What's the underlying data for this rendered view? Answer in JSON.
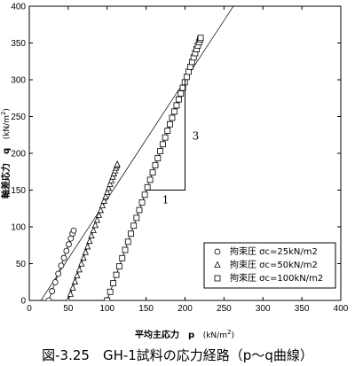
{
  "caption": "図-3.25　GH-1試料の応力経路（p～q曲線）",
  "chart_data": {
    "type": "scatter",
    "title": "",
    "xlabel": "平均主応力　p",
    "xlabel_unit": "(kN/m",
    "xlabel_unit_sup": "2",
    "xlabel_unit_close": ")",
    "ylabel": "軸差応力　q",
    "ylabel_unit": "(kN/m",
    "ylabel_unit_sup": "2",
    "ylabel_unit_close": ")",
    "xlim": [
      0,
      400
    ],
    "ylim": [
      0,
      400
    ],
    "x_ticks": [
      "0",
      "50",
      "100",
      "150",
      "200",
      "250",
      "300",
      "350",
      "400"
    ],
    "y_ticks": [
      "0",
      "50",
      "100",
      "150",
      "200",
      "250",
      "300",
      "350",
      "400"
    ],
    "grid": false,
    "legend_position": "bottom-right",
    "series": [
      {
        "name": "拘束圧 σc=25kN/m2",
        "marker": "circle",
        "start": [
          25,
          0
        ],
        "end": [
          57,
          95
        ],
        "n": 11
      },
      {
        "name": "拘束圧 σc=50kN/m2",
        "marker": "triangle",
        "start": [
          50,
          0
        ],
        "end": [
          113,
          185
        ],
        "n": 30
      },
      {
        "name": "拘束圧 σc=100kN/m2",
        "marker": "square",
        "start": [
          100,
          0
        ],
        "end": [
          220,
          357
        ],
        "n": 42
      }
    ],
    "reference_line": {
      "from": [
        15,
        0
      ],
      "to": [
        262,
        400
      ]
    },
    "slope_triangle": {
      "p1": [
        150,
        150
      ],
      "p2": [
        200,
        150
      ],
      "p3": [
        200,
        300
      ],
      "run_label": "1",
      "rise_label": "3"
    }
  }
}
